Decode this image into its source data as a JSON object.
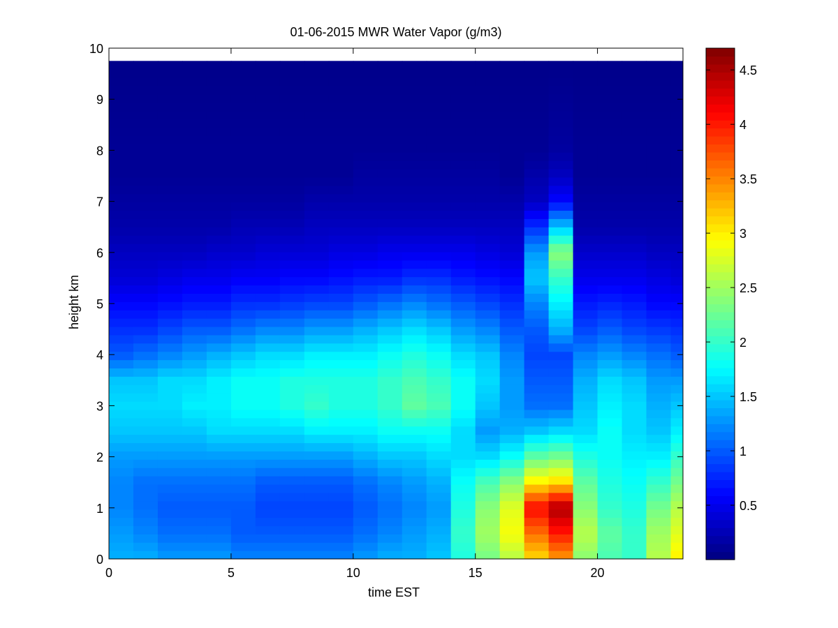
{
  "chart_data": {
    "type": "heatmap",
    "title": "01-06-2015 MWR Water Vapor (g/m3)",
    "xlabel": "time EST",
    "ylabel": "height km",
    "xlim": [
      0,
      23.5
    ],
    "ylim": [
      0,
      10
    ],
    "xticks": [
      0,
      5,
      10,
      15,
      20
    ],
    "yticks": [
      0,
      1,
      2,
      3,
      4,
      5,
      6,
      7,
      8,
      9,
      10
    ],
    "colorbar": {
      "colormap": "jet",
      "clim": [
        0,
        4.7
      ],
      "ticks": [
        0.5,
        1,
        1.5,
        2,
        2.5,
        3,
        3.5,
        4,
        4.5
      ]
    },
    "data_top_km": 9.75,
    "time_step_h": 1,
    "time_starts": [
      0,
      1,
      2,
      3,
      4,
      5,
      6,
      7,
      8,
      9,
      10,
      11,
      12,
      13,
      14,
      15,
      16,
      17,
      18,
      19,
      20,
      21,
      22,
      23
    ],
    "height_profile_km": [
      0,
      0.5,
      1,
      1.5,
      2,
      2.5,
      3,
      3.5,
      4,
      4.5,
      5,
      5.5,
      6,
      6.5,
      7,
      7.5,
      8,
      9.75
    ],
    "water_vapor_g_m3": [
      [
        1.4,
        1.3,
        1.2,
        1.2,
        1.3,
        1.5,
        1.6,
        1.5,
        1.0,
        0.8,
        0.6,
        0.4,
        0.3,
        0.2,
        0.15,
        0.1,
        0.1,
        0.05
      ],
      [
        1.4,
        1.2,
        1.1,
        1.1,
        1.3,
        1.5,
        1.6,
        1.5,
        1.1,
        0.8,
        0.6,
        0.4,
        0.3,
        0.2,
        0.15,
        0.1,
        0.1,
        0.05
      ],
      [
        1.3,
        1.1,
        1.0,
        1.1,
        1.3,
        1.5,
        1.6,
        1.6,
        1.2,
        0.9,
        0.65,
        0.45,
        0.3,
        0.2,
        0.15,
        0.1,
        0.1,
        0.05
      ],
      [
        1.3,
        1.1,
        1.0,
        1.1,
        1.3,
        1.5,
        1.7,
        1.6,
        1.3,
        1.0,
        0.7,
        0.5,
        0.3,
        0.2,
        0.15,
        0.1,
        0.1,
        0.05
      ],
      [
        1.3,
        1.1,
        1.0,
        1.1,
        1.3,
        1.6,
        1.7,
        1.7,
        1.4,
        1.0,
        0.7,
        0.5,
        0.35,
        0.2,
        0.15,
        0.1,
        0.1,
        0.05
      ],
      [
        1.2,
        1.0,
        1.0,
        1.1,
        1.3,
        1.6,
        1.8,
        1.8,
        1.5,
        1.1,
        0.8,
        0.55,
        0.35,
        0.25,
        0.15,
        0.1,
        0.1,
        0.05
      ],
      [
        1.2,
        1.0,
        0.9,
        1.0,
        1.3,
        1.6,
        1.8,
        1.8,
        1.6,
        1.2,
        0.8,
        0.55,
        0.4,
        0.25,
        0.15,
        0.1,
        0.1,
        0.05
      ],
      [
        1.2,
        1.0,
        0.9,
        1.0,
        1.3,
        1.6,
        1.9,
        1.9,
        1.6,
        1.2,
        0.85,
        0.6,
        0.4,
        0.25,
        0.15,
        0.1,
        0.1,
        0.05
      ],
      [
        1.2,
        1.0,
        0.9,
        1.0,
        1.3,
        1.7,
        2.0,
        1.9,
        1.7,
        1.3,
        0.9,
        0.6,
        0.4,
        0.3,
        0.2,
        0.1,
        0.1,
        0.05
      ],
      [
        1.2,
        1.0,
        0.9,
        1.0,
        1.3,
        1.7,
        1.9,
        1.9,
        1.7,
        1.3,
        0.9,
        0.65,
        0.45,
        0.3,
        0.2,
        0.1,
        0.1,
        0.05
      ],
      [
        1.3,
        1.1,
        1.0,
        1.1,
        1.4,
        1.7,
        1.9,
        1.9,
        1.7,
        1.4,
        1.0,
        0.7,
        0.45,
        0.3,
        0.2,
        0.15,
        0.1,
        0.05
      ],
      [
        1.4,
        1.2,
        1.1,
        1.2,
        1.5,
        1.8,
        2.0,
        2.0,
        1.8,
        1.5,
        1.1,
        0.7,
        0.5,
        0.3,
        0.2,
        0.15,
        0.1,
        0.05
      ],
      [
        1.4,
        1.3,
        1.2,
        1.3,
        1.5,
        1.8,
        2.2,
        2.1,
        1.9,
        1.6,
        1.2,
        0.8,
        0.5,
        0.3,
        0.2,
        0.15,
        0.1,
        0.05
      ],
      [
        1.5,
        1.4,
        1.3,
        1.4,
        1.6,
        1.8,
        2.1,
        2.0,
        1.8,
        1.5,
        1.1,
        0.8,
        0.5,
        0.3,
        0.2,
        0.15,
        0.1,
        0.05
      ],
      [
        1.9,
        2.0,
        1.9,
        1.8,
        1.6,
        1.6,
        1.8,
        1.8,
        1.6,
        1.3,
        1.0,
        0.7,
        0.5,
        0.3,
        0.2,
        0.15,
        0.1,
        0.05
      ],
      [
        2.3,
        2.5,
        2.4,
        2.1,
        1.6,
        1.3,
        1.5,
        1.6,
        1.5,
        1.2,
        0.9,
        0.65,
        0.45,
        0.3,
        0.2,
        0.15,
        0.1,
        0.05
      ],
      [
        2.6,
        2.9,
        2.8,
        2.4,
        1.8,
        1.4,
        1.3,
        1.3,
        1.2,
        1.0,
        0.8,
        0.6,
        0.4,
        0.3,
        0.2,
        0.1,
        0.1,
        0.05
      ],
      [
        3.1,
        3.6,
        4.1,
        3.0,
        2.2,
        1.5,
        1.1,
        1.0,
        0.9,
        1.0,
        1.2,
        1.5,
        1.3,
        0.8,
        0.3,
        0.2,
        0.1,
        0.05
      ],
      [
        3.4,
        4.0,
        4.5,
        3.1,
        2.3,
        1.6,
        1.1,
        1.0,
        0.9,
        1.4,
        1.7,
        2.0,
        2.4,
        1.5,
        0.6,
        0.3,
        0.15,
        0.05
      ],
      [
        2.4,
        2.6,
        2.4,
        2.2,
        1.9,
        1.6,
        1.5,
        1.4,
        1.2,
        0.9,
        0.7,
        0.5,
        0.35,
        0.2,
        0.15,
        0.1,
        0.1,
        0.05
      ],
      [
        2.1,
        2.2,
        2.0,
        1.9,
        1.8,
        1.8,
        1.7,
        1.6,
        1.3,
        1.0,
        0.75,
        0.5,
        0.35,
        0.2,
        0.15,
        0.1,
        0.1,
        0.05
      ],
      [
        2.0,
        2.0,
        1.9,
        1.8,
        1.7,
        1.6,
        1.6,
        1.5,
        1.2,
        0.9,
        0.7,
        0.5,
        0.35,
        0.2,
        0.15,
        0.1,
        0.1,
        0.05
      ],
      [
        2.6,
        2.5,
        2.3,
        2.0,
        1.7,
        1.5,
        1.4,
        1.3,
        1.1,
        0.85,
        0.6,
        0.45,
        0.3,
        0.2,
        0.15,
        0.1,
        0.1,
        0.05
      ],
      [
        3.0,
        2.8,
        2.6,
        2.3,
        2.0,
        1.7,
        1.5,
        1.3,
        1.0,
        0.8,
        0.6,
        0.4,
        0.3,
        0.2,
        0.15,
        0.1,
        0.1,
        0.05
      ]
    ]
  }
}
